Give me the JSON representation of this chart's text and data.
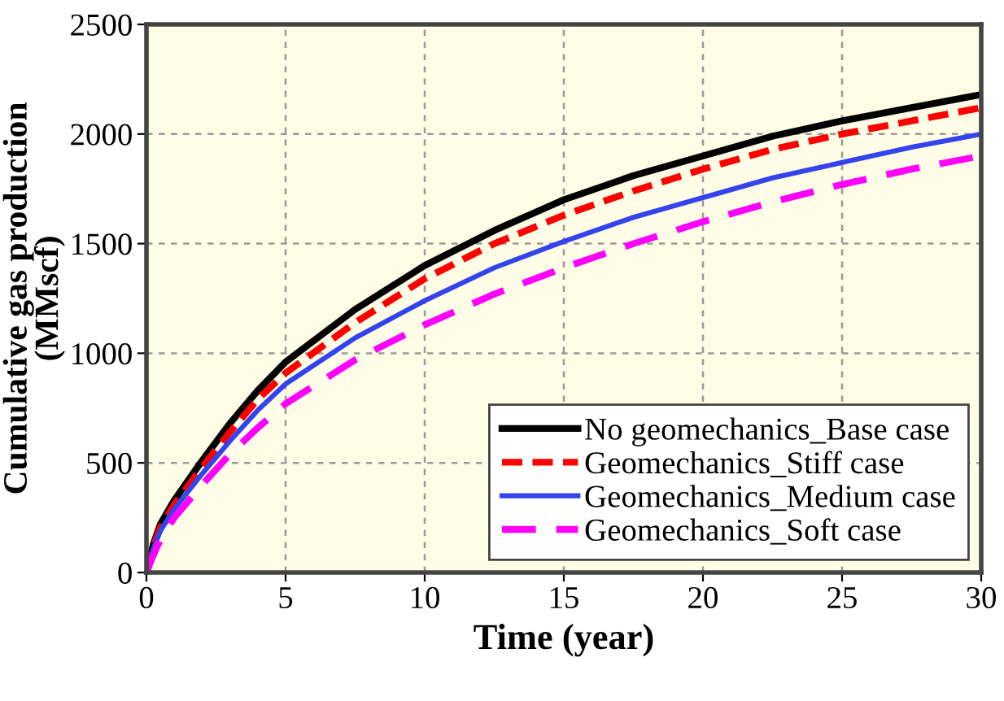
{
  "chart_data": {
    "type": "line",
    "xlabel": "Time (year)",
    "ylabel": "Cumulative gas production\n(MMscf)",
    "x": [
      0,
      0.25,
      0.5,
      1,
      2,
      3,
      4,
      5,
      7.5,
      10,
      12.5,
      15,
      17.5,
      20,
      22.5,
      25,
      27.5,
      30
    ],
    "series": [
      {
        "name": "No geomechanics_Base case",
        "color": "#000000",
        "line_style": "solid",
        "values": [
          0,
          130,
          220,
          330,
          510,
          680,
          830,
          960,
          1200,
          1400,
          1560,
          1700,
          1810,
          1900,
          1990,
          2060,
          2120,
          2180
        ]
      },
      {
        "name": "Geomechanics_Stiff case",
        "color": "#ff0000",
        "line_style": "dashed",
        "values": [
          0,
          120,
          205,
          310,
          480,
          640,
          790,
          910,
          1140,
          1340,
          1500,
          1630,
          1740,
          1840,
          1930,
          2000,
          2060,
          2120
        ]
      },
      {
        "name": "Geomechanics_Medium case",
        "color": "#3344ee",
        "line_style": "solid",
        "values": [
          0,
          110,
          190,
          290,
          450,
          600,
          740,
          860,
          1070,
          1240,
          1390,
          1510,
          1620,
          1710,
          1800,
          1870,
          1940,
          2000
        ]
      },
      {
        "name": "Geomechanics_Soft case",
        "color": "#ff00ff",
        "line_style": "dashed",
        "values": [
          0,
          80,
          150,
          250,
          400,
          540,
          660,
          770,
          970,
          1130,
          1270,
          1390,
          1500,
          1600,
          1690,
          1770,
          1840,
          1900
        ]
      }
    ],
    "xlim": [
      0,
      30
    ],
    "xticks": [
      0,
      5,
      10,
      15,
      20,
      25,
      30
    ],
    "ylim": [
      0,
      2500
    ],
    "yticks": [
      0,
      500,
      1000,
      1500,
      2000,
      2500
    ],
    "grid": true,
    "legend": "bottom right",
    "marker": "none"
  }
}
